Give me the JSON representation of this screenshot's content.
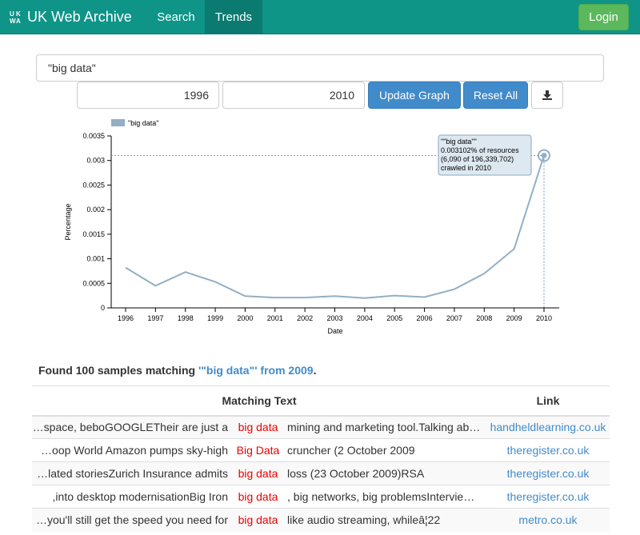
{
  "navbar": {
    "logo": [
      "U",
      "K",
      "W",
      "A"
    ],
    "title": "UK Web Archive",
    "links": [
      {
        "label": "Search"
      },
      {
        "label": "Trends"
      }
    ],
    "login_label": "Login"
  },
  "form": {
    "query": "\"big data\"",
    "year_from": "1996",
    "year_to": "2010",
    "update_label": "Update Graph",
    "reset_label": "Reset All",
    "download_icon": "download-icon"
  },
  "chart_data": {
    "type": "line",
    "xlabel": "Date",
    "ylabel": "Percentage",
    "legend": [
      "\"big data\""
    ],
    "legend_placement": "top-left",
    "ylim": [
      0,
      0.0035
    ],
    "yticks": [
      "0",
      "0.0005",
      "0.001",
      "0.0015",
      "0.002",
      "0.0025",
      "0.003",
      "0.0035"
    ],
    "x": [
      "1996",
      "1997",
      "1998",
      "1999",
      "2000",
      "2001",
      "2002",
      "2003",
      "2004",
      "2005",
      "2006",
      "2007",
      "2008",
      "2009",
      "2010"
    ],
    "series": [
      {
        "name": "\"big data\"",
        "values": [
          0.00082,
          0.00045,
          0.00073,
          0.00053,
          0.00024,
          0.00021,
          0.00021,
          0.00024,
          0.0002,
          0.00025,
          0.00022,
          0.00038,
          0.0007,
          0.0012,
          0.003102
        ]
      }
    ],
    "series_color": "#92afc4",
    "highlight_index": 14,
    "tooltip": [
      "\"\"big data\"\"",
      "0.003102% of resources",
      "(6,090 of 196,339,702)",
      "crawled in 2010"
    ]
  },
  "found": {
    "prefix": "Found 100 samples matching ",
    "term": "'\"big data\"' from 2009",
    "suffix": "."
  },
  "table": {
    "headers": {
      "text": "Matching Text",
      "link": "Link"
    },
    "rows": [
      {
        "pre": "…space, beboGOOGLETheir are just a",
        "match": "big data",
        "post": "mining and marketing tool.Talking ab…",
        "link": "handheldlearning.co.uk"
      },
      {
        "pre": "…oop World Amazon pumps sky-high",
        "match": "Big Data",
        "post": "cruncher (2 October 2009",
        "link": "theregister.co.uk"
      },
      {
        "pre": "…lated storiesZurich Insurance admits",
        "match": "big data",
        "post": "loss (23 October 2009)RSA",
        "link": "theregister.co.uk"
      },
      {
        "pre": ",into desktop modernisationBig Iron",
        "match": "big data",
        "post": ", big networks, big problemsIntervie…",
        "link": "theregister.co.uk"
      },
      {
        "pre": "…you'll still get the speed you need for",
        "match": "big data",
        "post": "like audio streaming, whileâ¦22",
        "link": "metro.co.uk"
      }
    ]
  }
}
